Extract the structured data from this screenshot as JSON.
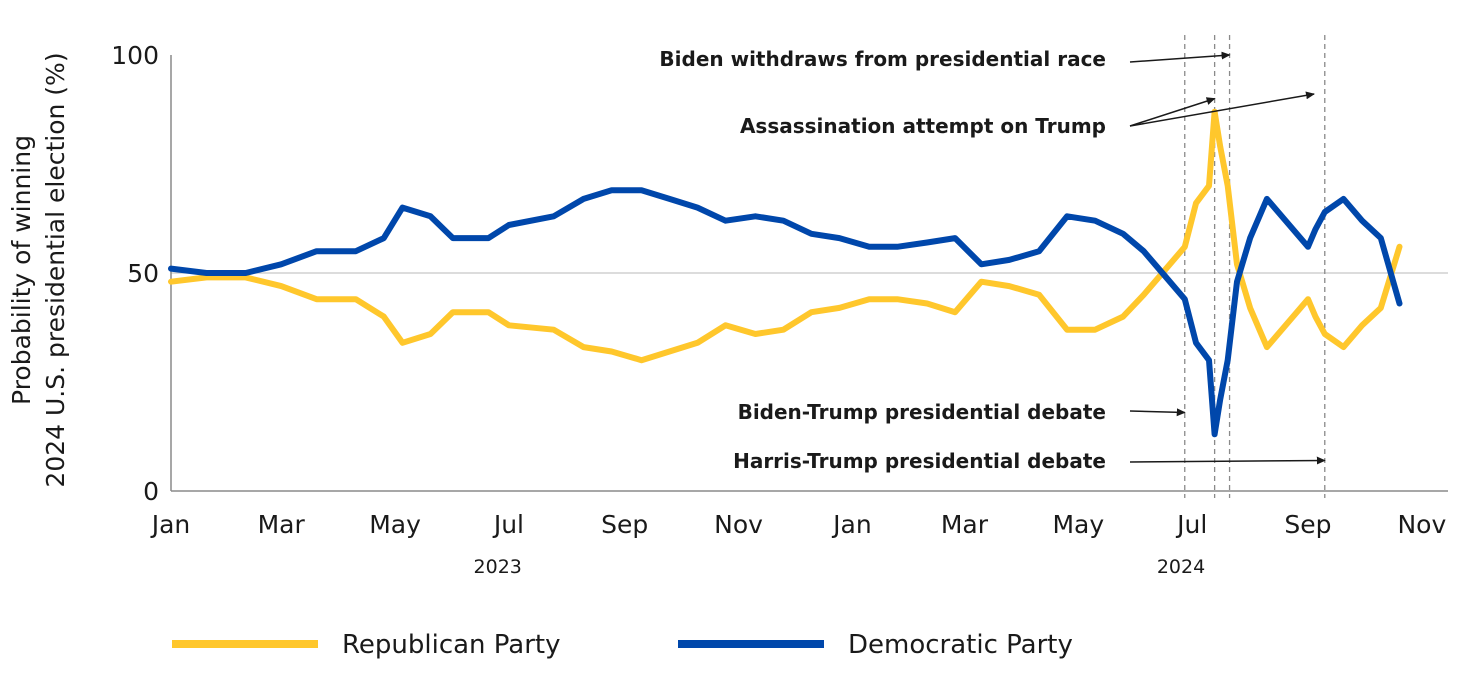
{
  "chart_data": {
    "type": "line",
    "ylabel_line1": "Probability of winning",
    "ylabel_line2": "2024 U.S. presidential election (%)",
    "ylim": [
      0,
      100
    ],
    "yticks": [
      "0",
      "50",
      "100"
    ],
    "xlim": [
      "2023-01-01",
      "2024-11-15"
    ],
    "xticks": [
      {
        "label": "Jan",
        "date": "2023-01-01"
      },
      {
        "label": "Mar",
        "date": "2023-03-01"
      },
      {
        "label": "May",
        "date": "2023-05-01"
      },
      {
        "label": "Jul",
        "date": "2023-07-01"
      },
      {
        "label": "Sep",
        "date": "2023-09-01"
      },
      {
        "label": "Nov",
        "date": "2023-11-01"
      },
      {
        "label": "Jan",
        "date": "2024-01-01"
      },
      {
        "label": "Mar",
        "date": "2024-03-01"
      },
      {
        "label": "May",
        "date": "2024-05-01"
      },
      {
        "label": "Jul",
        "date": "2024-07-01"
      },
      {
        "label": "Sep",
        "date": "2024-09-01"
      },
      {
        "label": "Nov",
        "date": "2024-11-01"
      }
    ],
    "year_labels": [
      {
        "label": "2023",
        "date": "2023-06-25"
      },
      {
        "label": "2024",
        "date": "2024-06-25"
      }
    ],
    "reference_line": 50,
    "series": [
      {
        "name": "Republican Party",
        "color": "#FFC72C",
        "points": [
          [
            "2023-01-01",
            48
          ],
          [
            "2023-01-20",
            49
          ],
          [
            "2023-02-10",
            49
          ],
          [
            "2023-03-01",
            47
          ],
          [
            "2023-03-20",
            44
          ],
          [
            "2023-04-10",
            44
          ],
          [
            "2023-04-25",
            40
          ],
          [
            "2023-05-05",
            34
          ],
          [
            "2023-05-20",
            36
          ],
          [
            "2023-06-01",
            41
          ],
          [
            "2023-06-20",
            41
          ],
          [
            "2023-07-01",
            38
          ],
          [
            "2023-07-25",
            37
          ],
          [
            "2023-08-10",
            33
          ],
          [
            "2023-08-25",
            32
          ],
          [
            "2023-09-10",
            30
          ],
          [
            "2023-09-25",
            32
          ],
          [
            "2023-10-10",
            34
          ],
          [
            "2023-10-25",
            38
          ],
          [
            "2023-11-10",
            36
          ],
          [
            "2023-11-25",
            37
          ],
          [
            "2023-12-10",
            41
          ],
          [
            "2023-12-25",
            42
          ],
          [
            "2024-01-10",
            44
          ],
          [
            "2024-01-25",
            44
          ],
          [
            "2024-02-10",
            43
          ],
          [
            "2024-02-25",
            41
          ],
          [
            "2024-03-10",
            48
          ],
          [
            "2024-03-25",
            47
          ],
          [
            "2024-04-10",
            45
          ],
          [
            "2024-04-25",
            37
          ],
          [
            "2024-05-10",
            37
          ],
          [
            "2024-05-25",
            40
          ],
          [
            "2024-06-05",
            45
          ],
          [
            "2024-06-15",
            50
          ],
          [
            "2024-06-27",
            56
          ],
          [
            "2024-07-03",
            66
          ],
          [
            "2024-07-10",
            70
          ],
          [
            "2024-07-13",
            87
          ],
          [
            "2024-07-16",
            79
          ],
          [
            "2024-07-20",
            70
          ],
          [
            "2024-07-25",
            52
          ],
          [
            "2024-08-01",
            42
          ],
          [
            "2024-08-10",
            33
          ],
          [
            "2024-08-20",
            38
          ],
          [
            "2024-09-01",
            44
          ],
          [
            "2024-09-05",
            40
          ],
          [
            "2024-09-10",
            36
          ],
          [
            "2024-09-20",
            33
          ],
          [
            "2024-09-30",
            38
          ],
          [
            "2024-10-10",
            42
          ],
          [
            "2024-10-20",
            56
          ]
        ]
      },
      {
        "name": "Democratic Party",
        "color": "#0047AB",
        "points": [
          [
            "2023-01-01",
            51
          ],
          [
            "2023-01-20",
            50
          ],
          [
            "2023-02-10",
            50
          ],
          [
            "2023-03-01",
            52
          ],
          [
            "2023-03-20",
            55
          ],
          [
            "2023-04-10",
            55
          ],
          [
            "2023-04-25",
            58
          ],
          [
            "2023-05-05",
            65
          ],
          [
            "2023-05-20",
            63
          ],
          [
            "2023-06-01",
            58
          ],
          [
            "2023-06-20",
            58
          ],
          [
            "2023-07-01",
            61
          ],
          [
            "2023-07-25",
            63
          ],
          [
            "2023-08-10",
            67
          ],
          [
            "2023-08-25",
            69
          ],
          [
            "2023-09-10",
            69
          ],
          [
            "2023-09-25",
            67
          ],
          [
            "2023-10-10",
            65
          ],
          [
            "2023-10-25",
            62
          ],
          [
            "2023-11-10",
            63
          ],
          [
            "2023-11-25",
            62
          ],
          [
            "2023-12-10",
            59
          ],
          [
            "2023-12-25",
            58
          ],
          [
            "2024-01-10",
            56
          ],
          [
            "2024-01-25",
            56
          ],
          [
            "2024-02-10",
            57
          ],
          [
            "2024-02-25",
            58
          ],
          [
            "2024-03-10",
            52
          ],
          [
            "2024-03-25",
            53
          ],
          [
            "2024-04-10",
            55
          ],
          [
            "2024-04-25",
            63
          ],
          [
            "2024-05-10",
            62
          ],
          [
            "2024-05-25",
            59
          ],
          [
            "2024-06-05",
            55
          ],
          [
            "2024-06-15",
            50
          ],
          [
            "2024-06-27",
            44
          ],
          [
            "2024-07-03",
            34
          ],
          [
            "2024-07-10",
            30
          ],
          [
            "2024-07-13",
            13
          ],
          [
            "2024-07-16",
            21
          ],
          [
            "2024-07-20",
            30
          ],
          [
            "2024-07-25",
            48
          ],
          [
            "2024-08-01",
            58
          ],
          [
            "2024-08-10",
            67
          ],
          [
            "2024-08-20",
            62
          ],
          [
            "2024-09-01",
            56
          ],
          [
            "2024-09-05",
            60
          ],
          [
            "2024-09-10",
            64
          ],
          [
            "2024-09-20",
            67
          ],
          [
            "2024-09-30",
            62
          ],
          [
            "2024-10-10",
            58
          ],
          [
            "2024-10-20",
            43
          ]
        ]
      }
    ],
    "event_lines": [
      "2024-06-27",
      "2024-07-13",
      "2024-07-21",
      "2024-09-10"
    ],
    "annotations": [
      {
        "text": "Biden  withdraws from presidential race",
        "target_date": "2024-07-21",
        "target_value": 100
      },
      {
        "text": "Assassination attempt on Trump",
        "target_date": "2024-07-13",
        "target_value": 90
      },
      {
        "text": "Biden-Trump presidential debate",
        "target_date": "2024-06-27",
        "target_value": 18
      },
      {
        "text": "Harris-Trump presidential debate",
        "target_date": "2024-09-10",
        "target_value": 7
      }
    ],
    "legend": [
      {
        "label": "Republican Party",
        "color": "#FFC72C"
      },
      {
        "label": "Democratic Party",
        "color": "#0047AB"
      }
    ]
  }
}
